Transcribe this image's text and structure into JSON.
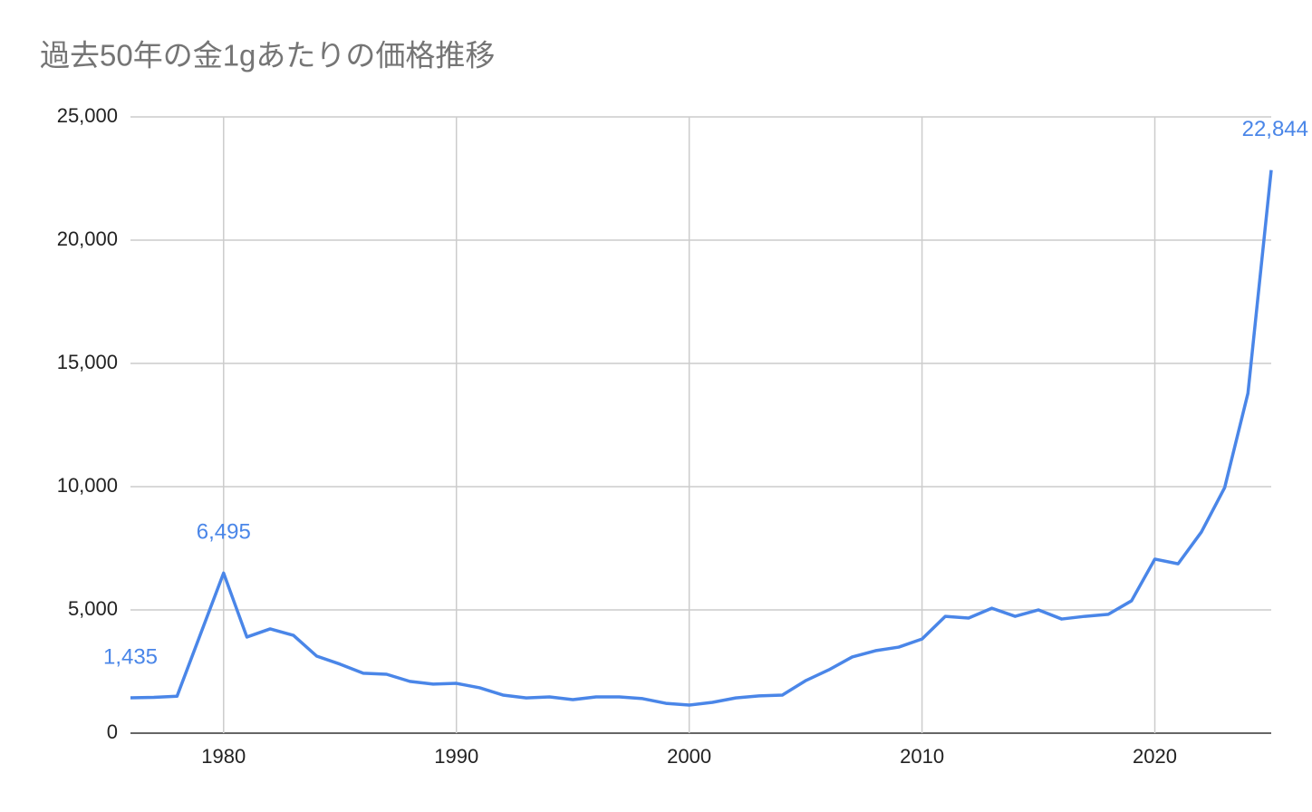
{
  "chart_data": {
    "type": "line",
    "title": "過去50年の金1gあたりの価格推移",
    "x": [
      1976,
      1977,
      1978,
      1979,
      1980,
      1981,
      1982,
      1983,
      1984,
      1985,
      1986,
      1987,
      1988,
      1989,
      1990,
      1991,
      1992,
      1993,
      1994,
      1995,
      1996,
      1997,
      1998,
      1999,
      2000,
      2001,
      2002,
      2003,
      2004,
      2005,
      2006,
      2007,
      2008,
      2009,
      2010,
      2011,
      2012,
      2013,
      2014,
      2015,
      2016,
      2017,
      2018,
      2019,
      2020,
      2021,
      2022,
      2023,
      2024,
      2025
    ],
    "values": [
      1435,
      1450,
      1500,
      4000,
      6495,
      3900,
      4230,
      3970,
      3125,
      2800,
      2430,
      2390,
      2100,
      1990,
      2020,
      1840,
      1545,
      1430,
      1470,
      1360,
      1470,
      1470,
      1400,
      1210,
      1140,
      1250,
      1430,
      1510,
      1545,
      2130,
      2570,
      3090,
      3345,
      3490,
      3820,
      4740,
      4670,
      5070,
      4740,
      5000,
      4630,
      4740,
      4820,
      5370,
      7060,
      6870,
      8160,
      9960,
      13790,
      22844
    ],
    "value_labels": [
      "1,435",
      null,
      null,
      null,
      "6,495",
      null,
      null,
      null,
      null,
      null,
      null,
      null,
      null,
      null,
      null,
      null,
      null,
      null,
      null,
      null,
      null,
      null,
      null,
      null,
      null,
      null,
      null,
      null,
      null,
      null,
      null,
      null,
      null,
      null,
      null,
      null,
      null,
      null,
      null,
      null,
      null,
      null,
      null,
      null,
      null,
      null,
      null,
      null,
      null,
      "22,844"
    ],
    "color": "#4a86e8",
    "xlim": [
      1976,
      2025
    ],
    "xticks": [
      1980,
      1990,
      2000,
      2010,
      2020
    ],
    "ylim": [
      0,
      25000
    ],
    "yticks": [
      0,
      {
        "value": 5000,
        "label": "5,000"
      },
      {
        "value": 10000,
        "label": "10,000"
      },
      {
        "value": 15000,
        "label": "15,000"
      },
      {
        "value": 20000,
        "label": "20,000"
      },
      {
        "value": 25000,
        "label": "25,000"
      }
    ],
    "grid": true
  }
}
